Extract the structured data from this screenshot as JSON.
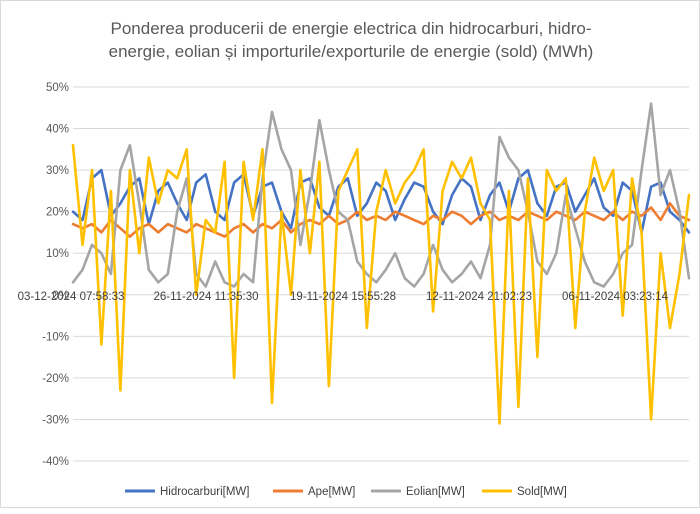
{
  "chart_data": {
    "type": "line",
    "title_lines": [
      "Ponderea producerii de energie electrica din hidrocarburi, hidro-",
      "energie, eolian și importurile/exporturile de energie (sold) (MWh)"
    ],
    "xlabel": "",
    "ylabel": "",
    "ylim": [
      -0.4,
      0.5
    ],
    "y_ticks": [
      "50%",
      "40%",
      "30%",
      "20%",
      "10%",
      "0%",
      "-10%",
      "-20%",
      "-30%",
      "-40%"
    ],
    "x_ticks": [
      "03-12-2024 07:58:33",
      "26-11-2024 11:35:30",
      "19-11-2024 15:55:28",
      "12-11-2024 21:02:23",
      "06-11-2024 03:23:14"
    ],
    "grid": "horizontal",
    "legend_position": "bottom",
    "series": [
      {
        "name": "Hidrocarburi[MW]",
        "color": "#4472c4",
        "values": [
          0.2,
          0.18,
          0.28,
          0.3,
          0.19,
          0.22,
          0.26,
          0.28,
          0.17,
          0.25,
          0.27,
          0.22,
          0.18,
          0.27,
          0.29,
          0.2,
          0.18,
          0.27,
          0.29,
          0.19,
          0.26,
          0.27,
          0.2,
          0.16,
          0.27,
          0.28,
          0.21,
          0.19,
          0.26,
          0.28,
          0.19,
          0.22,
          0.27,
          0.25,
          0.18,
          0.23,
          0.27,
          0.26,
          0.2,
          0.17,
          0.24,
          0.28,
          0.26,
          0.18,
          0.24,
          0.27,
          0.2,
          0.28,
          0.3,
          0.22,
          0.19,
          0.26,
          0.27,
          0.2,
          0.24,
          0.28,
          0.21,
          0.19,
          0.27,
          0.25,
          0.15,
          0.26,
          0.27,
          0.2,
          0.18,
          0.15
        ]
      },
      {
        "name": "Ape[MW]",
        "color": "#ed7d31",
        "values": [
          0.17,
          0.16,
          0.17,
          0.15,
          0.18,
          0.16,
          0.14,
          0.16,
          0.17,
          0.15,
          0.17,
          0.16,
          0.15,
          0.17,
          0.16,
          0.15,
          0.14,
          0.16,
          0.17,
          0.15,
          0.17,
          0.16,
          0.18,
          0.15,
          0.17,
          0.18,
          0.17,
          0.19,
          0.17,
          0.18,
          0.2,
          0.18,
          0.19,
          0.18,
          0.2,
          0.19,
          0.18,
          0.17,
          0.19,
          0.18,
          0.2,
          0.19,
          0.17,
          0.19,
          0.2,
          0.18,
          0.19,
          0.18,
          0.2,
          0.19,
          0.18,
          0.2,
          0.19,
          0.18,
          0.2,
          0.19,
          0.18,
          0.2,
          0.18,
          0.2,
          0.19,
          0.21,
          0.18,
          0.22,
          0.19,
          0.18
        ]
      },
      {
        "name": "Eolian[MW]",
        "color": "#a5a5a5",
        "values": [
          0.03,
          0.06,
          0.12,
          0.1,
          0.05,
          0.3,
          0.36,
          0.22,
          0.06,
          0.03,
          0.05,
          0.2,
          0.28,
          0.05,
          0.02,
          0.08,
          0.03,
          0.02,
          0.05,
          0.03,
          0.28,
          0.44,
          0.35,
          0.3,
          0.12,
          0.25,
          0.42,
          0.3,
          0.2,
          0.18,
          0.08,
          0.05,
          0.03,
          0.06,
          0.1,
          0.04,
          0.02,
          0.05,
          0.12,
          0.06,
          0.03,
          0.05,
          0.08,
          0.04,
          0.12,
          0.38,
          0.33,
          0.3,
          0.2,
          0.08,
          0.05,
          0.1,
          0.24,
          0.16,
          0.08,
          0.03,
          0.02,
          0.05,
          0.1,
          0.12,
          0.3,
          0.46,
          0.24,
          0.3,
          0.2,
          0.04
        ]
      },
      {
        "name": "Sold[MW]",
        "color": "#ffc000",
        "values": [
          0.36,
          0.12,
          0.3,
          -0.12,
          0.25,
          -0.23,
          0.3,
          0.1,
          0.33,
          0.22,
          0.3,
          0.28,
          0.35,
          0.0,
          0.18,
          0.15,
          0.32,
          -0.2,
          0.32,
          0.18,
          0.35,
          -0.26,
          0.2,
          0.0,
          0.3,
          0.1,
          0.32,
          -0.22,
          0.25,
          0.3,
          0.35,
          -0.08,
          0.2,
          0.3,
          0.22,
          0.27,
          0.3,
          0.35,
          -0.04,
          0.25,
          0.32,
          0.28,
          0.33,
          0.22,
          0.18,
          -0.31,
          0.25,
          -0.27,
          0.28,
          -0.15,
          0.3,
          0.25,
          0.28,
          -0.08,
          0.2,
          0.33,
          0.25,
          0.3,
          -0.05,
          0.28,
          0.15,
          -0.3,
          0.1,
          -0.08,
          0.05,
          0.24
        ]
      }
    ]
  }
}
